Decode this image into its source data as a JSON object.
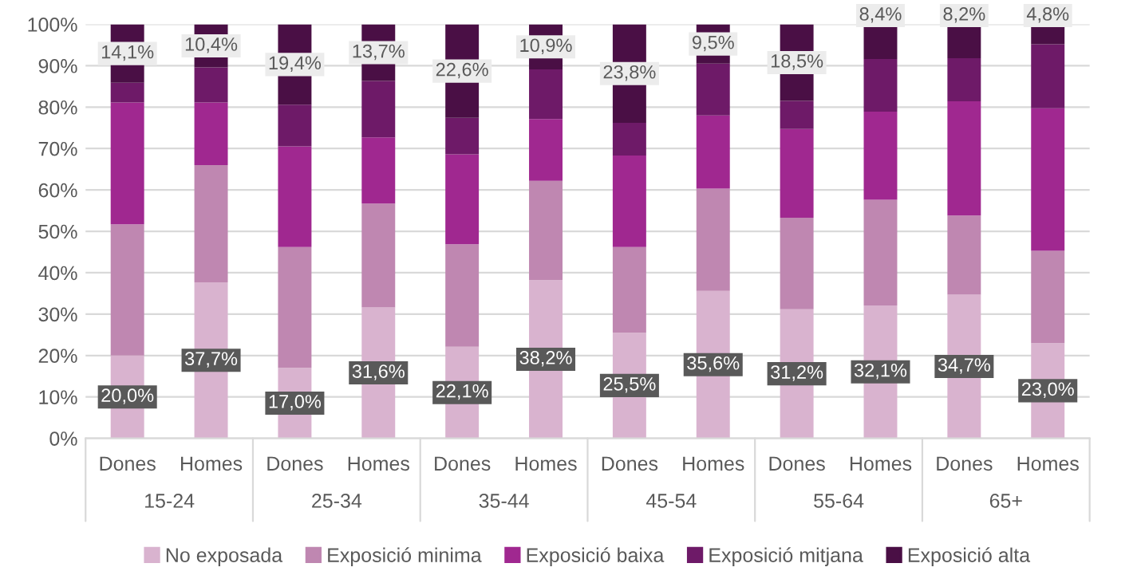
{
  "chart_data": {
    "type": "bar",
    "stacked": true,
    "categories": [
      "Dones",
      "Homes",
      "Dones",
      "Homes",
      "Dones",
      "Homes",
      "Dones",
      "Homes",
      "Dones",
      "Homes",
      "Dones",
      "Homes"
    ],
    "annotations": [
      "15-24",
      "25-34",
      "35-44",
      "45-54",
      "55-64",
      "65+"
    ],
    "series": [
      {
        "name": "No exposada",
        "color": "#d9b3cf",
        "values": [
          20.0,
          37.7,
          17.0,
          31.6,
          22.1,
          38.2,
          25.5,
          35.6,
          31.2,
          32.1,
          34.7,
          23.0
        ],
        "value_labels": [
          "20,0%",
          "37,7%",
          "17,0%",
          "31,6%",
          "22,1%",
          "38,2%",
          "25,5%",
          "35,6%",
          "31,2%",
          "32,1%",
          "34,7%",
          "23,0%"
        ]
      },
      {
        "name": "Exposició minima",
        "color": "#bf87b1",
        "values": [
          31.7,
          28.3,
          29.2,
          25.1,
          24.8,
          24.0,
          20.7,
          24.7,
          22.1,
          25.5,
          19.1,
          22.3
        ]
      },
      {
        "name": "Exposició baixa",
        "color": "#a02890",
        "values": [
          29.4,
          15.1,
          24.3,
          16.0,
          21.7,
          14.9,
          22.1,
          17.7,
          21.4,
          21.3,
          27.6,
          34.4
        ]
      },
      {
        "name": "Exposició mitjana",
        "color": "#6e1a68",
        "values": [
          4.8,
          8.5,
          10.1,
          13.6,
          8.8,
          12.0,
          7.9,
          12.5,
          6.8,
          12.7,
          10.4,
          15.5
        ]
      },
      {
        "name": "Exposició alta",
        "color": "#4a0f45",
        "values": [
          14.1,
          10.4,
          19.4,
          13.7,
          22.6,
          10.9,
          23.8,
          9.5,
          18.5,
          8.4,
          8.2,
          4.8
        ],
        "value_labels": [
          "14,1%",
          "10,4%",
          "19,4%",
          "13,7%",
          "22,6%",
          "10,9%",
          "23,8%",
          "9,5%",
          "18,5%",
          "8,4%",
          "8,2%",
          "4,8%"
        ]
      }
    ],
    "ylim": [
      0,
      100
    ],
    "yticks": [
      {
        "value": 0,
        "label": "0%"
      },
      {
        "value": 10,
        "label": "10%"
      },
      {
        "value": 20,
        "label": "20%"
      },
      {
        "value": 30,
        "label": "30%"
      },
      {
        "value": 40,
        "label": "40%"
      },
      {
        "value": 50,
        "label": "50%"
      },
      {
        "value": 60,
        "label": "60%"
      },
      {
        "value": 70,
        "label": "70%"
      },
      {
        "value": 80,
        "label": "80%"
      },
      {
        "value": 90,
        "label": "90%"
      },
      {
        "value": 100,
        "label": "100%"
      }
    ],
    "grid": "y",
    "legend": "bottom"
  }
}
